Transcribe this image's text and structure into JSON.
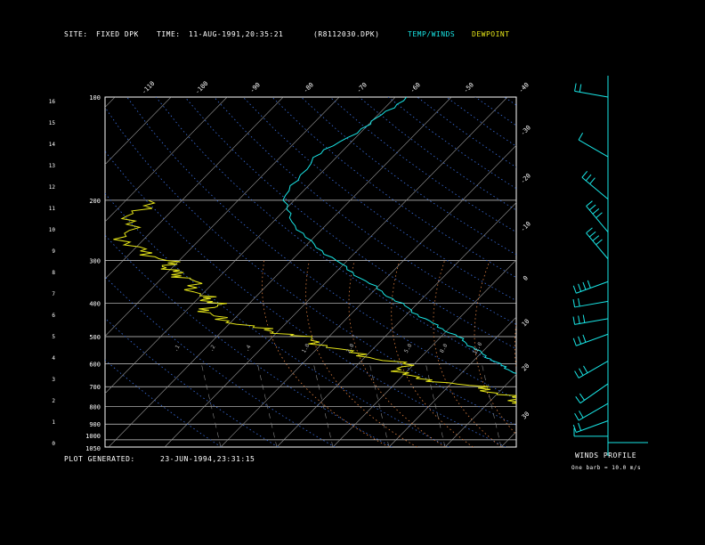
{
  "header": {
    "site_label": "SITE:",
    "site_value": "FIXED DPK",
    "time_label": "TIME:",
    "time_value": "11-AUG-1991,20:35:21",
    "file_name": "(R8112030.DPK)",
    "temp_winds_legend": "TEMP/WINDS",
    "dewpoint_legend": "DEWPOINT",
    "temp_color": "#19e6e6",
    "dew_color": "#e6e619"
  },
  "footer": {
    "generated_label": "PLOT GENERATED:",
    "generated_value": "23-JUN-1994,23:31:15"
  },
  "winds_panel": {
    "title": "WINDS PROFILE",
    "note": "One barb = 10.0 m/s"
  },
  "chart_data": {
    "type": "line",
    "pressure_levels": [
      "100",
      "200",
      "300",
      "400",
      "500",
      "600",
      "700",
      "800",
      "900",
      "1000",
      "1050"
    ],
    "height_km": [
      "16",
      "15",
      "14",
      "13",
      "12",
      "11",
      "10",
      "9",
      "8",
      "7",
      "6",
      "5",
      "4",
      "3",
      "2",
      "1",
      "0"
    ],
    "isotherm_labels_top": [
      "-110",
      "-100",
      "-90",
      "-80",
      "-70",
      "-60",
      "-50",
      "-40"
    ],
    "isotherm_labels_right": [
      "-30",
      "-20",
      "-10",
      "0",
      "10",
      "20",
      "30"
    ],
    "mixing_ratio_labels": [
      ".1",
      ".2",
      ".4",
      "1.0",
      "2.0",
      "5.0",
      "8.0",
      "12.0"
    ],
    "series": [
      {
        "name": "TEMP/WINDS",
        "points": [
          [
            100,
            -68
          ],
          [
            120,
            -70
          ],
          [
            150,
            -74
          ],
          [
            200,
            -72
          ],
          [
            250,
            -63
          ],
          [
            300,
            -52
          ],
          [
            350,
            -42
          ],
          [
            400,
            -33
          ],
          [
            450,
            -25
          ],
          [
            500,
            -17
          ],
          [
            550,
            -11
          ],
          [
            600,
            -5
          ],
          [
            650,
            1
          ],
          [
            700,
            6
          ],
          [
            750,
            10
          ],
          [
            800,
            13
          ],
          [
            850,
            16
          ],
          [
            900,
            19
          ],
          [
            950,
            24
          ],
          [
            1000,
            28
          ],
          [
            1020,
            29
          ]
        ]
      },
      {
        "name": "DEWPOINT",
        "points": [
          [
            200,
            -96
          ],
          [
            230,
            -96
          ],
          [
            270,
            -92
          ],
          [
            300,
            -82
          ],
          [
            320,
            -80
          ],
          [
            340,
            -75
          ],
          [
            380,
            -70
          ],
          [
            400,
            -66
          ],
          [
            430,
            -66
          ],
          [
            470,
            -55
          ],
          [
            500,
            -45
          ],
          [
            550,
            -35
          ],
          [
            600,
            -22
          ],
          [
            650,
            -20
          ],
          [
            700,
            -5
          ],
          [
            750,
            3
          ],
          [
            800,
            8
          ],
          [
            850,
            10
          ],
          [
            900,
            12
          ],
          [
            950,
            14
          ],
          [
            1000,
            14
          ],
          [
            1020,
            15
          ]
        ]
      }
    ],
    "winds": [
      {
        "p": 100,
        "dir": 280,
        "spd": 20
      },
      {
        "p": 150,
        "dir": 300,
        "spd": 5
      },
      {
        "p": 200,
        "dir": 310,
        "spd": 30
      },
      {
        "p": 250,
        "dir": 320,
        "spd": 40
      },
      {
        "p": 300,
        "dir": 320,
        "spd": 35
      },
      {
        "p": 350,
        "dir": 250,
        "spd": 40
      },
      {
        "p": 400,
        "dir": 260,
        "spd": 20
      },
      {
        "p": 450,
        "dir": 260,
        "spd": 30
      },
      {
        "p": 500,
        "dir": 250,
        "spd": 25
      },
      {
        "p": 600,
        "dir": 240,
        "spd": 25
      },
      {
        "p": 700,
        "dir": 235,
        "spd": 20
      },
      {
        "p": 800,
        "dir": 240,
        "spd": 20
      },
      {
        "p": 900,
        "dir": 250,
        "spd": 15
      },
      {
        "p": 1000,
        "dir": 270,
        "spd": 10
      }
    ]
  }
}
